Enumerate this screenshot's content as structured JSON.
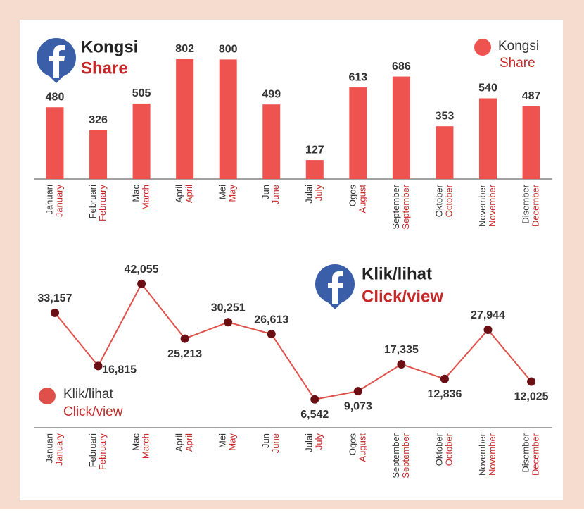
{
  "chart_data": [
    {
      "type": "bar",
      "title": "Kongsi",
      "subtitle": "Share",
      "categories": [
        "Januari",
        "Februari",
        "Mac",
        "April",
        "Mei",
        "Jun",
        "Julai",
        "Ogos",
        "September",
        "Oktober",
        "November",
        "Disember"
      ],
      "categories_en": [
        "January",
        "February",
        "March",
        "April",
        "May",
        "June",
        "July",
        "August",
        "September",
        "October",
        "November",
        "December"
      ],
      "series": [
        {
          "name": "Kongsi",
          "name_en": "Share",
          "color": "#ef5350",
          "values": [
            480,
            326,
            505,
            802,
            800,
            499,
            127,
            613,
            686,
            353,
            540,
            487
          ]
        }
      ]
    },
    {
      "type": "line",
      "title": "Klik/lihat",
      "subtitle": "Click/view",
      "categories": [
        "Januari",
        "Februari",
        "Mac",
        "April",
        "Mei",
        "Jun",
        "Julai",
        "Ogos",
        "September",
        "Oktober",
        "November",
        "Disember"
      ],
      "categories_en": [
        "January",
        "February",
        "March",
        "April",
        "May",
        "June",
        "July",
        "August",
        "September",
        "October",
        "November",
        "December"
      ],
      "series": [
        {
          "name": "Klik/lihat",
          "name_en": "Click/view",
          "color": "#e0504a",
          "marker_color": "#6b0f14",
          "values": [
            33157,
            16815,
            42055,
            25213,
            30251,
            26613,
            6542,
            9073,
            17335,
            12836,
            27944,
            12025
          ],
          "value_labels": [
            "33,157",
            "16,815",
            "42,055",
            "25,213",
            "30,251",
            "26,613",
            "6,542",
            "9,073",
            "17,335",
            "12,836",
            "27,944",
            "12,025"
          ]
        }
      ]
    }
  ]
}
